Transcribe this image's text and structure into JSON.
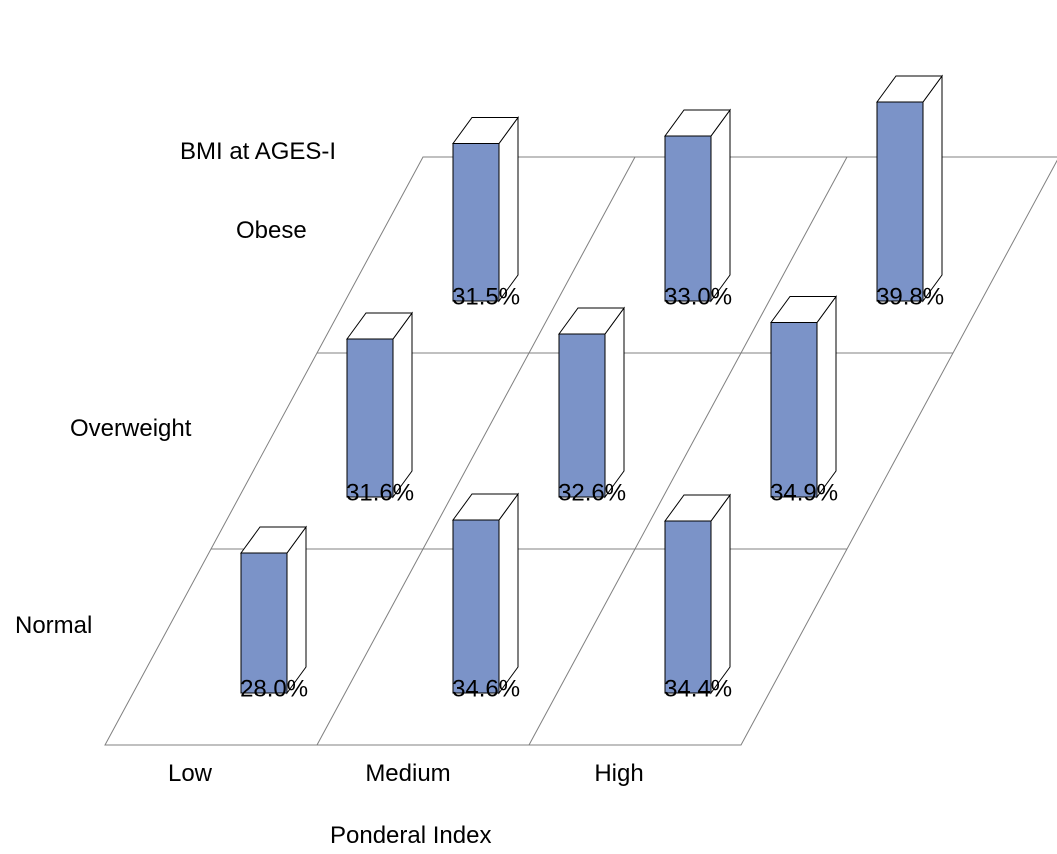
{
  "chart_data": {
    "type": "bar",
    "subtype": "3d-grid",
    "x_categories": [
      "Low",
      "Medium",
      "High"
    ],
    "y_categories": [
      "Normal",
      "Overweight",
      "Obese"
    ],
    "xlabel": "Ponderal Index",
    "ylabel": "BMI at AGES-I",
    "series": [
      {
        "name": "Normal",
        "values": [
          28.0,
          34.6,
          34.4
        ],
        "labels": [
          "28.0%",
          "34.6%",
          "34.4%"
        ]
      },
      {
        "name": "Overweight",
        "values": [
          31.6,
          32.6,
          34.9
        ],
        "labels": [
          "31.6%",
          "32.6%",
          "34.9%"
        ]
      },
      {
        "name": "Obese",
        "values": [
          31.5,
          33.0,
          39.8
        ],
        "labels": [
          "31.5%",
          "33.0%",
          "39.8%"
        ]
      }
    ],
    "unit": "%",
    "grid": true,
    "legend": "none",
    "colors": {
      "bar_front": "#7b93c8",
      "bar_side": "#ffffff",
      "bar_edge": "#000000",
      "grid_line": "#808080"
    }
  }
}
